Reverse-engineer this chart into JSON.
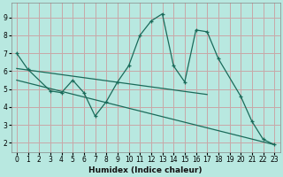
{
  "xlabel": "Humidex (Indice chaleur)",
  "bg_color": "#b8e8e0",
  "grid_color": "#c8a8a8",
  "line_color": "#1a6b5a",
  "xlim": [
    -0.5,
    23.5
  ],
  "ylim": [
    1.5,
    9.8
  ],
  "xticks": [
    0,
    1,
    2,
    3,
    4,
    5,
    6,
    7,
    8,
    9,
    10,
    11,
    12,
    13,
    14,
    15,
    16,
    17,
    18,
    19,
    20,
    21,
    22,
    23
  ],
  "yticks": [
    2,
    3,
    4,
    5,
    6,
    7,
    8,
    9
  ],
  "lines": [
    {
      "x": [
        0,
        1,
        3,
        4,
        5,
        6,
        7,
        8,
        9,
        10,
        11,
        12,
        13,
        14,
        15,
        16,
        17,
        18,
        20,
        21,
        22,
        23
      ],
      "y": [
        7.0,
        6.1,
        4.9,
        4.8,
        5.5,
        4.8,
        3.5,
        4.3,
        5.4,
        6.3,
        8.0,
        8.8,
        9.2,
        6.3,
        5.4,
        8.3,
        8.2,
        6.7,
        4.6,
        3.2,
        2.2,
        1.9
      ]
    },
    {
      "x": [
        0,
        17
      ],
      "y": [
        6.15,
        4.7
      ]
    },
    {
      "x": [
        0,
        23
      ],
      "y": [
        5.5,
        1.9
      ]
    }
  ]
}
